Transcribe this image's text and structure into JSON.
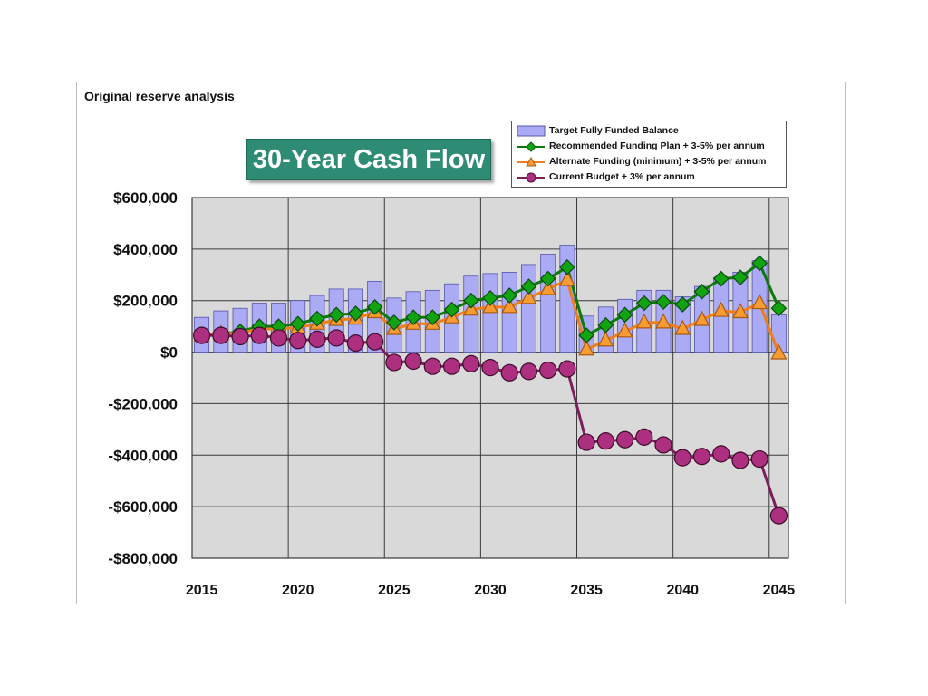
{
  "caption": "Original reserve analysis",
  "title": "30-Year Cash Flow",
  "colors": {
    "plot_bg": "#d9d9d9",
    "grid": "#3a3a3a",
    "bar_fill": "#aaaaf5",
    "bar_stroke": "#5555aa",
    "recommended": "#11a312",
    "recommended_line": "#0b7a0b",
    "alternate": "#f79c32",
    "alternate_line": "#ef7d19",
    "current": "#ad2f7f",
    "current_line": "#7a1f5a"
  },
  "legend": [
    {
      "key": "bar",
      "label": "Target Fully Funded Balance"
    },
    {
      "key": "recommended",
      "label": "Recommended Funding Plan + 3-5% per annum"
    },
    {
      "key": "alternate",
      "label": "Alternate Funding (minimum) + 3-5% per annum"
    },
    {
      "key": "current",
      "label": "Current Budget + 3% per annum"
    }
  ],
  "chart_data": {
    "type": "bar",
    "title": "30-Year Cash Flow",
    "x": [
      2015,
      2016,
      2017,
      2018,
      2019,
      2020,
      2021,
      2022,
      2023,
      2024,
      2025,
      2026,
      2027,
      2028,
      2029,
      2030,
      2031,
      2032,
      2033,
      2034,
      2035,
      2036,
      2037,
      2038,
      2039,
      2040,
      2041,
      2042,
      2043,
      2044,
      2045
    ],
    "xticks": [
      2015,
      2020,
      2025,
      2030,
      2035,
      2040,
      2045
    ],
    "xtick_labels": [
      "2015",
      "2020",
      "2025",
      "2030",
      "2035",
      "2040",
      "2045"
    ],
    "ylim": [
      -800000,
      600000
    ],
    "yticks": [
      600000,
      400000,
      200000,
      0,
      -200000,
      -400000,
      -600000,
      -800000
    ],
    "ytick_labels": [
      "$600,000",
      "$400,000",
      "$200,000",
      "$0",
      "-$200,000",
      "-$400,000",
      "-$600,000",
      "-$800,000"
    ],
    "grid": true,
    "legend_position": "top-right",
    "series": [
      {
        "name": "Target Fully Funded Balance",
        "kind": "bar",
        "values": [
          135000,
          160000,
          170000,
          190000,
          190000,
          200000,
          220000,
          245000,
          245000,
          275000,
          210000,
          235000,
          240000,
          265000,
          295000,
          305000,
          310000,
          340000,
          380000,
          415000,
          140000,
          175000,
          205000,
          240000,
          240000,
          215000,
          255000,
          290000,
          310000,
          355000,
          145000
        ]
      },
      {
        "name": "Recommended Funding Plan + 3-5% per annum",
        "kind": "line",
        "marker": "diamond",
        "values": [
          65000,
          70000,
          80000,
          100000,
          100000,
          110000,
          130000,
          145000,
          150000,
          175000,
          115000,
          135000,
          135000,
          165000,
          200000,
          210000,
          220000,
          255000,
          285000,
          330000,
          65000,
          105000,
          145000,
          190000,
          195000,
          185000,
          235000,
          285000,
          290000,
          345000,
          170000
        ]
      },
      {
        "name": "Alternate Funding (minimum) + 3-5% per annum",
        "kind": "line",
        "marker": "triangle",
        "values": [
          65000,
          70000,
          75000,
          90000,
          90000,
          95000,
          110000,
          125000,
          130000,
          155000,
          90000,
          110000,
          110000,
          135000,
          165000,
          175000,
          175000,
          210000,
          245000,
          280000,
          10000,
          45000,
          80000,
          115000,
          115000,
          90000,
          125000,
          160000,
          155000,
          190000,
          -5000
        ]
      },
      {
        "name": "Current Budget + 3% per annum",
        "kind": "line",
        "marker": "circle",
        "values": [
          65000,
          65000,
          60000,
          65000,
          55000,
          45000,
          50000,
          55000,
          35000,
          40000,
          -40000,
          -35000,
          -55000,
          -55000,
          -45000,
          -60000,
          -80000,
          -75000,
          -70000,
          -65000,
          -350000,
          -345000,
          -340000,
          -330000,
          -360000,
          -410000,
          -405000,
          -395000,
          -420000,
          -415000,
          -635000
        ]
      }
    ]
  }
}
